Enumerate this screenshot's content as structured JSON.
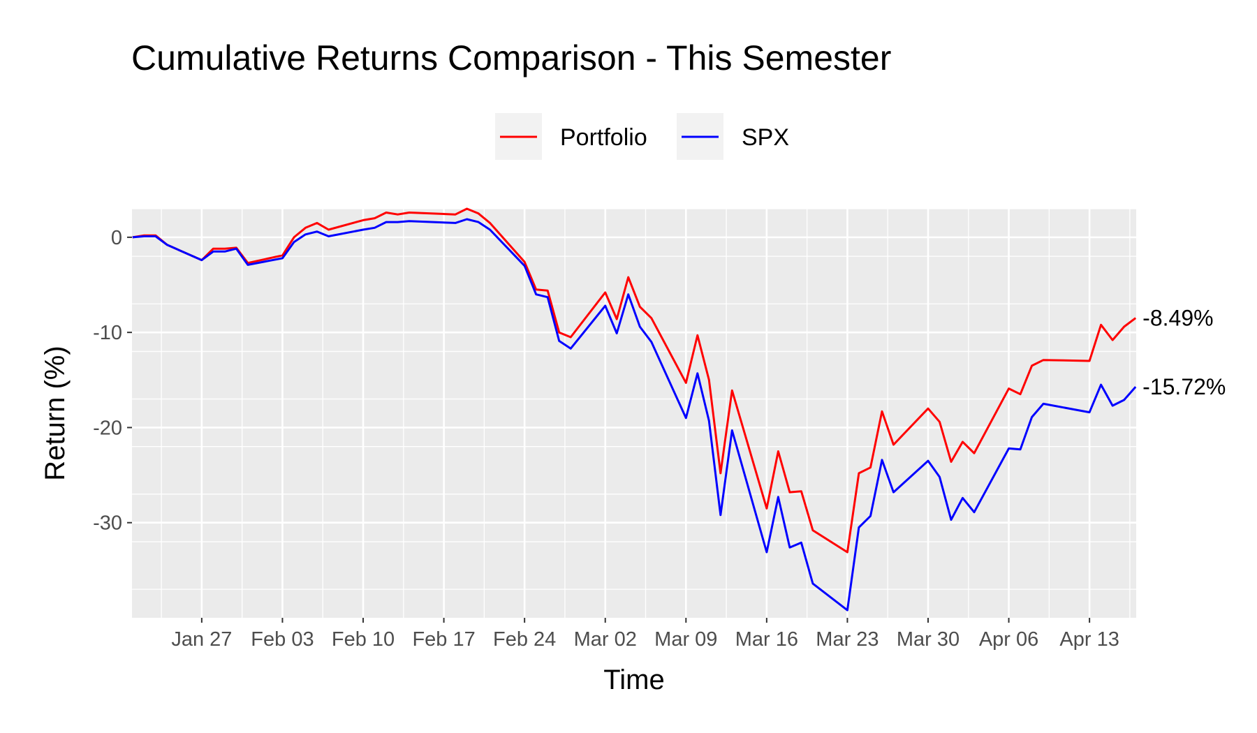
{
  "chart_data": {
    "type": "line",
    "title": "Cumulative Returns Comparison - This Semester",
    "xlabel": "Time",
    "ylabel": "Return (%)",
    "legend_position": "top",
    "grid": true,
    "ylim": [
      -40,
      3
    ],
    "y_ticks": [
      0,
      -10,
      -20,
      -30
    ],
    "x_ticks": [
      "Jan 27",
      "Feb 03",
      "Feb 10",
      "Feb 17",
      "Feb 24",
      "Mar 02",
      "Mar 09",
      "Mar 16",
      "Mar 23",
      "Mar 30",
      "Apr 06",
      "Apr 13"
    ],
    "x": [
      "2020-01-21",
      "2020-01-22",
      "2020-01-23",
      "2020-01-24",
      "2020-01-27",
      "2020-01-28",
      "2020-01-29",
      "2020-01-30",
      "2020-01-31",
      "2020-02-03",
      "2020-02-04",
      "2020-02-05",
      "2020-02-06",
      "2020-02-07",
      "2020-02-10",
      "2020-02-11",
      "2020-02-12",
      "2020-02-13",
      "2020-02-14",
      "2020-02-18",
      "2020-02-19",
      "2020-02-20",
      "2020-02-21",
      "2020-02-24",
      "2020-02-25",
      "2020-02-26",
      "2020-02-27",
      "2020-02-28",
      "2020-03-02",
      "2020-03-03",
      "2020-03-04",
      "2020-03-05",
      "2020-03-06",
      "2020-03-09",
      "2020-03-10",
      "2020-03-11",
      "2020-03-12",
      "2020-03-13",
      "2020-03-16",
      "2020-03-17",
      "2020-03-18",
      "2020-03-19",
      "2020-03-20",
      "2020-03-23",
      "2020-03-24",
      "2020-03-25",
      "2020-03-26",
      "2020-03-27",
      "2020-03-30",
      "2020-03-31",
      "2020-04-01",
      "2020-04-02",
      "2020-04-03",
      "2020-04-06",
      "2020-04-07",
      "2020-04-08",
      "2020-04-09",
      "2020-04-13",
      "2020-04-14",
      "2020-04-15",
      "2020-04-16",
      "2020-04-17"
    ],
    "series": [
      {
        "name": "Portfolio",
        "color": "#ff0000",
        "end_label": "-8.49%",
        "values": [
          0.0,
          0.2,
          0.2,
          -0.8,
          -2.4,
          -1.2,
          -1.2,
          -1.1,
          -2.7,
          -1.9,
          0.0,
          1.0,
          1.5,
          0.8,
          1.8,
          2.0,
          2.6,
          2.4,
          2.6,
          2.4,
          3.0,
          2.5,
          1.5,
          -2.6,
          -5.5,
          -5.6,
          -10.0,
          -10.5,
          -5.8,
          -8.6,
          -4.2,
          -7.3,
          -8.5,
          -15.3,
          -10.3,
          -15.0,
          -24.8,
          -16.1,
          -28.5,
          -22.5,
          -26.8,
          -26.7,
          -30.8,
          -33.1,
          -24.8,
          -24.2,
          -18.3,
          -21.8,
          -18.0,
          -19.4,
          -23.6,
          -21.5,
          -22.7,
          -15.9,
          -16.5,
          -13.5,
          -12.9,
          -13.0,
          -9.2,
          -10.8,
          -9.4,
          -8.49
        ]
      },
      {
        "name": "SPX",
        "color": "#0000ff",
        "end_label": "-15.72%",
        "values": [
          0.0,
          0.1,
          0.1,
          -0.8,
          -2.4,
          -1.5,
          -1.5,
          -1.2,
          -2.9,
          -2.2,
          -0.5,
          0.3,
          0.6,
          0.1,
          0.8,
          1.0,
          1.6,
          1.6,
          1.7,
          1.5,
          1.9,
          1.6,
          0.8,
          -3.0,
          -6.0,
          -6.3,
          -10.9,
          -11.7,
          -7.2,
          -10.1,
          -6.0,
          -9.4,
          -11.0,
          -19.0,
          -14.3,
          -19.3,
          -29.2,
          -20.3,
          -33.1,
          -27.3,
          -32.6,
          -32.1,
          -36.4,
          -39.2,
          -30.5,
          -29.3,
          -23.4,
          -26.8,
          -23.5,
          -25.2,
          -29.7,
          -27.4,
          -28.9,
          -22.2,
          -22.3,
          -18.9,
          -17.5,
          -18.4,
          -15.5,
          -17.7,
          -17.1,
          -15.72
        ]
      }
    ]
  }
}
